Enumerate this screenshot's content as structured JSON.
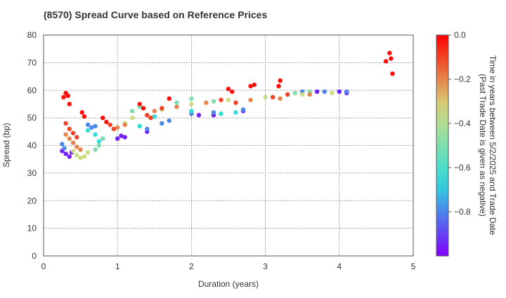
{
  "chart_data": {
    "type": "scatter",
    "title": "(8570)   Spread Curve based on Reference Prices",
    "xlabel": "Duration (years)",
    "ylabel": "Spread (bp)",
    "xlim": [
      0,
      5
    ],
    "ylim": [
      0,
      80
    ],
    "xticks": [
      "0",
      "1",
      "2",
      "3",
      "4",
      "5"
    ],
    "yticks": [
      "0",
      "10",
      "20",
      "30",
      "40",
      "50",
      "60",
      "70",
      "80"
    ],
    "grid": true,
    "colorbar": {
      "label_line1": "Time in years between 5/2/2025 and Trade Date",
      "label_line2": "(Past Trade Date is given as negative)",
      "range": [
        -1.0,
        0.0
      ],
      "ticks": [
        "0.0",
        "−0.2",
        "−0.4",
        "−0.6",
        "−0.8"
      ],
      "tick_values": [
        0.0,
        -0.2,
        -0.4,
        -0.6,
        -0.8
      ],
      "colormap": [
        "#8000ff",
        "#2adddd",
        "#d4dd80",
        "#ff0000"
      ]
    },
    "series": [
      {
        "t": -0.02,
        "points": [
          [
            0.27,
            57.5
          ],
          [
            0.3,
            59.0
          ],
          [
            0.33,
            58.0
          ],
          [
            0.35,
            55.0
          ],
          [
            0.52,
            52.0
          ],
          [
            0.55,
            50.5
          ],
          [
            0.8,
            50.0
          ],
          [
            0.85,
            48.5
          ],
          [
            1.3,
            55.0
          ],
          [
            1.35,
            53.5
          ],
          [
            1.7,
            57.0
          ],
          [
            2.5,
            60.5
          ],
          [
            2.55,
            59.5
          ],
          [
            2.8,
            61.5
          ],
          [
            2.85,
            62.0
          ],
          [
            3.2,
            63.5
          ],
          [
            3.18,
            61.5
          ],
          [
            4.63,
            70.5
          ],
          [
            4.68,
            73.5
          ],
          [
            4.7,
            71.5
          ],
          [
            4.72,
            66.0
          ]
        ]
      },
      {
        "t": -0.1,
        "points": [
          [
            0.3,
            48.0
          ],
          [
            0.35,
            46.0
          ],
          [
            0.4,
            44.5
          ],
          [
            0.45,
            43.0
          ],
          [
            0.9,
            47.5
          ],
          [
            0.95,
            46.0
          ],
          [
            1.4,
            51.0
          ],
          [
            1.45,
            50.0
          ],
          [
            1.6,
            53.5
          ],
          [
            2.4,
            56.5
          ],
          [
            2.6,
            55.5
          ],
          [
            3.1,
            57.5
          ],
          [
            3.3,
            58.5
          ]
        ]
      },
      {
        "t": -0.2,
        "points": [
          [
            0.3,
            44.0
          ],
          [
            0.35,
            42.5
          ],
          [
            0.4,
            41.0
          ],
          [
            0.45,
            39.5
          ],
          [
            0.5,
            38.5
          ],
          [
            1.0,
            46.5
          ],
          [
            1.1,
            47.5
          ],
          [
            1.5,
            52.5
          ],
          [
            1.8,
            54.0
          ],
          [
            2.2,
            55.5
          ],
          [
            2.8,
            56.5
          ],
          [
            3.2,
            57.0
          ],
          [
            3.6,
            58.5
          ]
        ]
      },
      {
        "t": -0.35,
        "points": [
          [
            0.4,
            38.0
          ],
          [
            0.45,
            36.5
          ],
          [
            0.5,
            35.5
          ],
          [
            0.55,
            36.0
          ],
          [
            0.6,
            37.5
          ],
          [
            1.1,
            48.0
          ],
          [
            1.2,
            50.0
          ],
          [
            1.6,
            53.0
          ],
          [
            2.0,
            55.0
          ],
          [
            2.5,
            56.5
          ],
          [
            3.0,
            57.5
          ],
          [
            3.5,
            58.5
          ],
          [
            3.9,
            59.0
          ]
        ]
      },
      {
        "t": -0.5,
        "points": [
          [
            0.7,
            38.5
          ],
          [
            0.75,
            40.0
          ],
          [
            0.8,
            42.5
          ],
          [
            1.2,
            52.5
          ],
          [
            1.3,
            54.0
          ],
          [
            1.8,
            55.5
          ],
          [
            2.0,
            57.0
          ],
          [
            2.3,
            56.0
          ],
          [
            3.4,
            59.0
          ],
          [
            3.6,
            59.5
          ]
        ]
      },
      {
        "t": -0.65,
        "points": [
          [
            0.6,
            45.5
          ],
          [
            0.7,
            44.0
          ],
          [
            0.75,
            41.5
          ],
          [
            0.8,
            42.5
          ],
          [
            1.3,
            47.0
          ],
          [
            1.5,
            50.5
          ],
          [
            2.0,
            52.5
          ],
          [
            2.4,
            51.5
          ],
          [
            2.6,
            52.0
          ]
        ]
      },
      {
        "t": -0.8,
        "points": [
          [
            0.25,
            40.5
          ],
          [
            0.28,
            39.0
          ],
          [
            0.6,
            47.5
          ],
          [
            0.65,
            46.5
          ],
          [
            0.7,
            47.0
          ],
          [
            1.3,
            47.0
          ],
          [
            1.4,
            46.0
          ],
          [
            1.6,
            48.0
          ],
          [
            1.7,
            49.0
          ],
          [
            2.0,
            51.5
          ],
          [
            2.3,
            52.0
          ],
          [
            2.7,
            53.0
          ],
          [
            3.5,
            59.5
          ],
          [
            3.8,
            59.5
          ],
          [
            4.1,
            59.5
          ]
        ]
      },
      {
        "t": -0.95,
        "points": [
          [
            0.25,
            38.0
          ],
          [
            0.3,
            37.0
          ],
          [
            0.35,
            36.0
          ],
          [
            0.38,
            37.5
          ],
          [
            1.0,
            42.5
          ],
          [
            1.05,
            43.5
          ],
          [
            1.1,
            43.0
          ],
          [
            1.4,
            45.0
          ],
          [
            2.1,
            51.0
          ],
          [
            2.3,
            51.0
          ],
          [
            2.7,
            52.5
          ],
          [
            3.7,
            59.5
          ],
          [
            4.0,
            59.5
          ],
          [
            4.1,
            59.0
          ]
        ]
      }
    ]
  }
}
